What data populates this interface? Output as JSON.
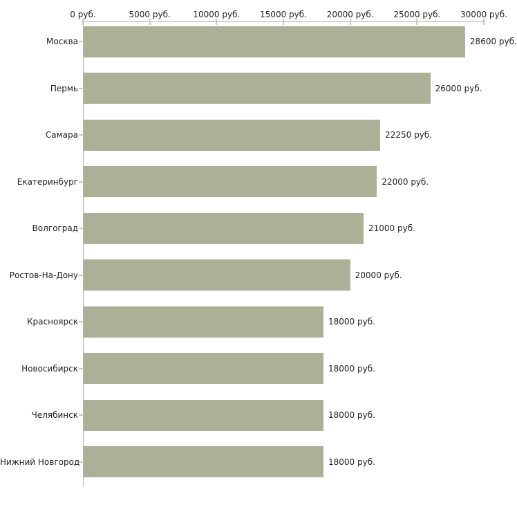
{
  "chart_data": {
    "type": "bar",
    "orientation": "horizontal",
    "title": "",
    "xlabel": "",
    "ylabel": "",
    "legend": false,
    "grid": false,
    "categories": [
      "Москва",
      "Пермь",
      "Самара",
      "Екатеринбург",
      "Волгоград",
      "Ростов-На-Дону",
      "Красноярск",
      "Новосибирск",
      "Челябинск",
      "Нижний Новгород"
    ],
    "values": [
      28600,
      26000,
      22250,
      22000,
      21000,
      20000,
      18000,
      18000,
      18000,
      18000
    ],
    "value_labels": [
      "28600 руб.",
      "26000 руб.",
      "22250 руб.",
      "22000 руб.",
      "21000 руб.",
      "20000 руб.",
      "18000 руб.",
      "18000 руб.",
      "18000 руб.",
      "18000 руб."
    ],
    "x_ticks": [
      0,
      5000,
      10000,
      15000,
      20000,
      25000,
      30000
    ],
    "x_tick_labels": [
      "0 руб.",
      "5000 руб.",
      "10000 руб.",
      "15000 руб.",
      "20000 руб.",
      "25000 руб.",
      "30000 руб."
    ],
    "xlim": [
      0,
      30000
    ],
    "axis_position": "top",
    "colors": {
      "bar": "#abb096",
      "axis_line": "#b3b3b3",
      "tick_mark": "#cbc8ad",
      "text": "#222222",
      "background": "#ffffff"
    }
  }
}
